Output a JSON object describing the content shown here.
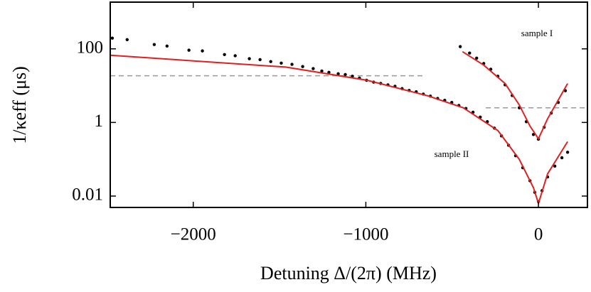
{
  "chart_data": {
    "type": "line",
    "x_label": "Detuning Δ/(2π) (MHz)",
    "y_label": "1/κeff (μs)",
    "log_y": true,
    "xlim": [
      -2481,
      284
    ],
    "ylim": [
      0.0049,
      1860
    ],
    "xticks": [
      {
        "value": -2000,
        "label": "−2000"
      },
      {
        "value": -1000,
        "label": "−1000"
      },
      0
    ],
    "yticks": [
      100,
      1,
      0.01
    ],
    "annotations": [
      {
        "text": "sample I"
      },
      {
        "text": "sample II"
      }
    ],
    "series": [
      {
        "mode": "lines",
        "dash": true,
        "color": "#999999",
        "x": [
          -2481,
          -654
        ],
        "values": [
          18.6,
          18.6
        ]
      },
      {
        "mode": "lines",
        "dash": true,
        "color": "#999999",
        "x": [
          -305,
          284
        ],
        "values": [
          2.5,
          2.5
        ]
      },
      {
        "mode": "markers",
        "color": "#000000",
        "x": [
          -2469,
          -2383,
          -2226,
          -2152,
          -2025,
          -1947,
          -1819,
          -1757,
          -1675,
          -1613,
          -1551,
          -1490,
          -1428,
          -1366,
          -1305,
          -1255,
          -1214,
          -1160,
          -1119,
          -1078,
          -1037,
          -996,
          -955,
          -914,
          -872,
          -831,
          -790,
          -749,
          -708,
          -667,
          -626,
          -584,
          -543,
          -502,
          -461,
          -420,
          -379,
          -337,
          -296,
          -255,
          -214,
          -173,
          -132,
          -91,
          -49,
          -21,
          0,
          21,
          53,
          95,
          136,
          169
        ],
        "values": [
          195,
          178,
          131,
          119,
          92,
          88,
          70,
          65,
          54,
          51,
          45,
          41,
          38,
          33,
          29,
          25,
          23,
          21,
          20,
          18,
          16,
          14,
          12.5,
          11.5,
          10.5,
          9.6,
          8.3,
          7.4,
          6.8,
          5.9,
          5.2,
          4.5,
          4.0,
          3.5,
          2.9,
          2.4,
          1.9,
          1.4,
          1.05,
          0.7,
          0.43,
          0.24,
          0.125,
          0.059,
          0.026,
          0.0126,
          0.0071,
          0.014,
          0.033,
          0.065,
          0.11,
          0.155
        ]
      },
      {
        "mode": "markers",
        "color": "#000000",
        "x": [
          -453,
          -399,
          -358,
          -317,
          -276,
          -235,
          -193,
          -152,
          -111,
          -70,
          -29,
          0,
          33,
          74,
          115,
          156
        ],
        "values": [
          115,
          77,
          56,
          40,
          28,
          18,
          10.5,
          5.4,
          2.5,
          1.05,
          0.47,
          0.35,
          0.74,
          1.8,
          3.5,
          7.3
        ]
      },
      {
        "mode": "lines",
        "color": "#e02020",
        "x": [
          -2481,
          -1465,
          -992,
          -642,
          -436,
          -235,
          -111,
          -29,
          0,
          53,
          169
        ],
        "values": [
          67,
          32,
          14,
          5.3,
          2.5,
          0.6,
          0.1,
          0.017,
          0.0063,
          0.04,
          0.3
        ]
      },
      {
        "mode": "lines",
        "color": "#e02020",
        "x": [
          -440,
          -317,
          -193,
          -111,
          -49,
          0,
          53,
          169
        ],
        "values": [
          84,
          36,
          11.4,
          3.0,
          0.8,
          0.36,
          1.25,
          11.4
        ]
      }
    ]
  }
}
